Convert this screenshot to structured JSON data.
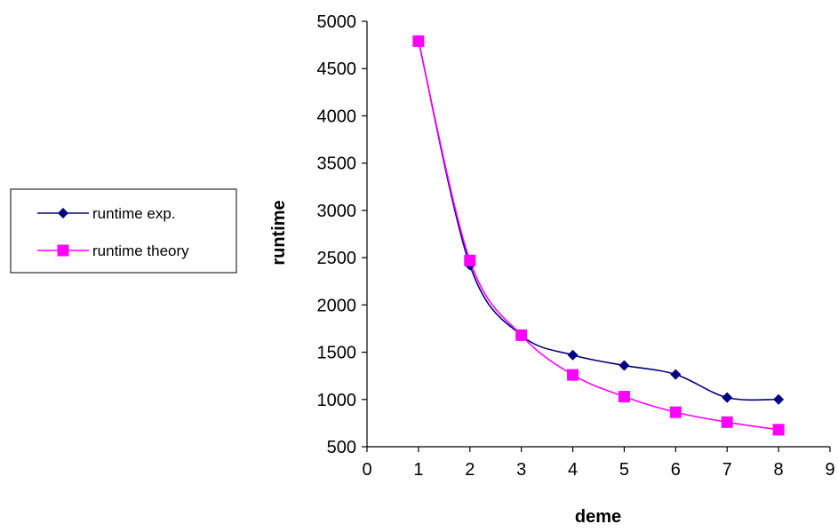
{
  "chart_data": {
    "type": "line",
    "title": "",
    "xlabel": "deme",
    "ylabel": "runtime",
    "xlim": [
      0,
      9
    ],
    "ylim": [
      500,
      5000
    ],
    "x_ticks": [
      0,
      1,
      2,
      3,
      4,
      5,
      6,
      7,
      8,
      9
    ],
    "y_ticks": [
      500,
      1000,
      1500,
      2000,
      2500,
      3000,
      3500,
      4000,
      4500,
      5000
    ],
    "grid": false,
    "legend_position": "left",
    "series": [
      {
        "name": "runtime exp.",
        "color": "#000080",
        "marker": "diamond",
        "x": [
          1,
          2,
          3,
          4,
          5,
          6,
          7,
          8
        ],
        "values": [
          4800,
          2420,
          1680,
          1470,
          1360,
          1265,
          1020,
          1000
        ]
      },
      {
        "name": "runtime theory",
        "color": "#FF00FF",
        "marker": "square",
        "x": [
          1,
          2,
          3,
          4,
          5,
          6,
          7,
          8
        ],
        "values": [
          4790,
          2470,
          1680,
          1260,
          1030,
          865,
          760,
          680
        ]
      }
    ]
  }
}
